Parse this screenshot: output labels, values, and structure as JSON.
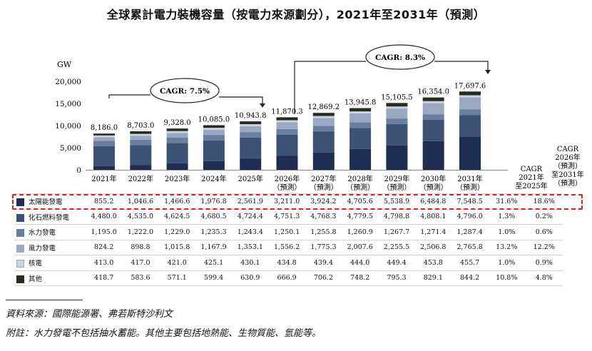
{
  "title": "全球累計電力裝機容量（按電力來源劃分），2021年至2031年（預測）",
  "colors": {
    "太陽能發電": "#1f2d52",
    "化石燃料發電": "#3b5275",
    "水力發電": "#6a7fa0",
    "風力發電": "#9aa9c1",
    "核電": "#c9d3e2",
    "其他": "#282c1c",
    "highlight": "#e02020"
  },
  "chart_data": {
    "type": "bar",
    "stacked": true,
    "ylabel": "GW",
    "ylim": [
      0,
      20000
    ],
    "yticks": [
      "0",
      "5,000",
      "10,000",
      "15,000",
      "20,000"
    ],
    "categories": [
      "2021年",
      "2022年",
      "2023年",
      "2024年",
      "2025年",
      "2026年\n（預測）",
      "2027年\n（預測）",
      "2028年\n（預測）",
      "2029年\n（預測）",
      "2030年\n（預測）",
      "2031年\n（預測）"
    ],
    "totals": [
      8186.0,
      8703.0,
      9328.0,
      10085.0,
      10943.8,
      11870.3,
      12869.2,
      13945.8,
      15105.5,
      16354.0,
      17697.6
    ],
    "total_labels": [
      "8,186.0",
      "8,703.0",
      "9,328.0",
      "10,085.0",
      "10,943.8",
      "11,870.3",
      "12,869.2",
      "13,945.8",
      "15,105.5",
      "16,354.0",
      "17,697.6"
    ],
    "series": [
      {
        "name": "太陽能發電",
        "values": [
          855.2,
          1046.6,
          1466.6,
          1976.8,
          2561.9,
          3211.0,
          3924.2,
          4705.6,
          5538.9,
          6484.8,
          7548.5
        ]
      },
      {
        "name": "化石燃料發電",
        "values": [
          4480.0,
          4535.0,
          4624.5,
          4680.5,
          4724.4,
          4751.3,
          4768.3,
          4779.5,
          4798.8,
          4808.1,
          4796.0
        ]
      },
      {
        "name": "水力發電",
        "values": [
          1195.0,
          1222.0,
          1229.0,
          1235.3,
          1243.4,
          1250.1,
          1255.8,
          1260.9,
          1267.7,
          1271.4,
          1287.4
        ]
      },
      {
        "name": "風力發電",
        "values": [
          824.2,
          898.8,
          1015.8,
          1167.9,
          1353.1,
          1556.2,
          1775.3,
          2007.6,
          2255.5,
          2506.8,
          2765.8
        ]
      },
      {
        "name": "核電",
        "values": [
          413.0,
          417.0,
          421.0,
          425.1,
          430.1,
          434.8,
          439.4,
          444.0,
          449.4,
          453.8,
          455.7
        ]
      },
      {
        "name": "其他",
        "values": [
          418.7,
          583.6,
          571.1,
          599.4,
          630.9,
          666.9,
          706.2,
          748.2,
          795.3,
          829.1,
          844.2
        ]
      }
    ],
    "annotations": [
      {
        "text": "CAGR: 7.5%",
        "from": "2021年",
        "to": "2025年"
      },
      {
        "text": "CAGR: 8.3%",
        "from": "2026年",
        "to": "2031年"
      }
    ]
  },
  "table": {
    "cagr_header_1": "CAGR\n2021年\n至2025年",
    "cagr_header_2": "CAGR\n2026年\n（預測）\n至2031年\n（預測）",
    "rows": [
      {
        "label": "太陽能發電",
        "cells": [
          "855.2",
          "1,046.6",
          "1,466.6",
          "1,976.8",
          "2,561.9",
          "3,211.0",
          "3,924.2",
          "4,705.6",
          "5,538.9",
          "6,484.8",
          "7,548.5"
        ],
        "cagr1": "31.6%",
        "cagr2": "18.6%"
      },
      {
        "label": "化石燃料發電",
        "cells": [
          "4,480.0",
          "4,535.0",
          "4,624.5",
          "4,680.5",
          "4,724.4",
          "4,751.3",
          "4,768.3",
          "4,779.5",
          "4,798.8",
          "4,808.1",
          "4,796.0"
        ],
        "cagr1": "1.3%",
        "cagr2": "0.2%"
      },
      {
        "label": "水力發電",
        "cells": [
          "1,195.0",
          "1,222.0",
          "1,229.0",
          "1,235.3",
          "1,243.4",
          "1,250.1",
          "1,255.8",
          "1,260.9",
          "1,267.7",
          "1,271.4",
          "1,287.4"
        ],
        "cagr1": "1.0%",
        "cagr2": "0.6%"
      },
      {
        "label": "風力發電",
        "cells": [
          "824.2",
          "898.8",
          "1,015.8",
          "1,167.9",
          "1,353.1",
          "1,556.2",
          "1,775.3",
          "2,007.6",
          "2,255.5",
          "2,506.8",
          "2,765.8"
        ],
        "cagr1": "13.2%",
        "cagr2": "12.2%"
      },
      {
        "label": "核電",
        "cells": [
          "413.0",
          "417.0",
          "421.0",
          "425.1",
          "430.1",
          "434.8",
          "439.4",
          "444.0",
          "449.4",
          "453.8",
          "455.7"
        ],
        "cagr1": "1.0%",
        "cagr2": "0.9%"
      },
      {
        "label": "其他",
        "cells": [
          "418.7",
          "583.6",
          "571.1",
          "599.4",
          "630.9",
          "666.9",
          "706.2",
          "748.2",
          "795.3",
          "829.1",
          "844.2"
        ],
        "cagr1": "10.8%",
        "cagr2": "4.8%"
      }
    ]
  },
  "footer": {
    "source": "資料來源：國際能源署、弗若斯特沙利文",
    "note": "附註：水力發電不包括抽水蓄能。其他主要包括地熱能、生物質能、氫能等。"
  }
}
